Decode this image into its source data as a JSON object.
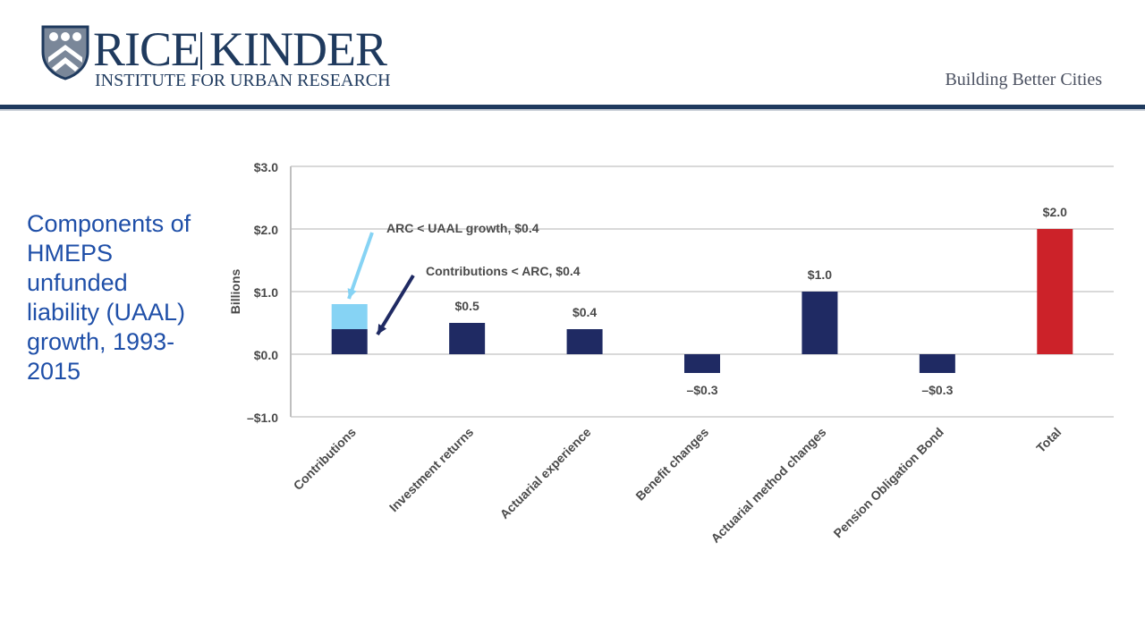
{
  "header": {
    "logo_rice": "RICE",
    "logo_kinder": "KINDER",
    "logo_subtitle": "INSTITUTE FOR URBAN RESEARCH",
    "tagline": "Building Better Cities"
  },
  "side_title": "Components of HMEPS unfunded liability (UAAL) growth, 1993-2015",
  "colors": {
    "navy": "#1f2a63",
    "light_blue": "#86d3f4",
    "red": "#cc2229",
    "brand": "#1f3a5e",
    "title_blue": "#1f4fa8"
  },
  "chart_data": {
    "type": "bar",
    "categories": [
      "Contributions",
      "Investment returns",
      "Actuarial experience",
      "Benefit changes",
      "Actuarial method changes",
      "Pension Obligation Bond",
      "Total"
    ],
    "values": [
      0.4,
      0.5,
      0.4,
      -0.3,
      1.0,
      -0.3,
      2.0
    ],
    "data_labels": [
      "",
      "$0.5",
      "$0.4",
      "–$0.3",
      "$1.0",
      "–$0.3",
      "$2.0"
    ],
    "stacked_top": {
      "category": "Contributions",
      "value": 0.4
    },
    "ylabel": "Billions",
    "ylim": [
      -1.0,
      3.0
    ],
    "yticks": [
      3.0,
      2.0,
      1.0,
      0.0,
      -1.0
    ],
    "ytick_labels": [
      "$3.0",
      "$2.0",
      "$1.0",
      "$0.0",
      "–$1.0"
    ],
    "grid": true,
    "annotations": [
      "ARC < UAAL growth, $0.4",
      "Contributions < ARC, $0.4"
    ]
  }
}
